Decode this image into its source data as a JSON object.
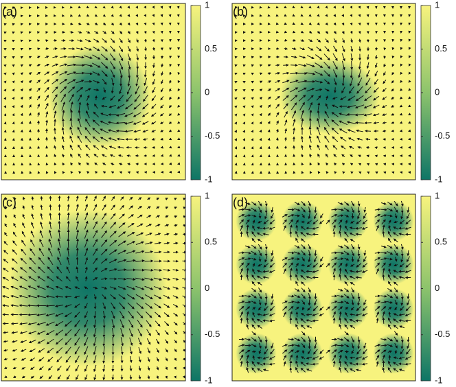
{
  "chart_data": [
    {
      "type": "heatmap",
      "title": "(a)",
      "colors": [
        "#0e7566",
        "#f7f37e"
      ],
      "colorbar": {
        "lim": [
          -1,
          1
        ],
        "ticks": [
          1,
          0.5,
          0,
          -0.5,
          -1
        ]
      }
    },
    {
      "type": "heatmap",
      "title": "(b)",
      "colors": [
        "#0e7566",
        "#f7f37e"
      ],
      "colorbar": {
        "lim": [
          -1,
          1
        ],
        "ticks": [
          1,
          0.5,
          0,
          -0.5,
          -1
        ]
      }
    },
    {
      "type": "heatmap",
      "title": "(c)",
      "colors": [
        "#0e7566",
        "#f7f37e"
      ],
      "colorbar": {
        "lim": [
          -1,
          1
        ],
        "ticks": [
          1,
          0.5,
          0,
          -0.5,
          -1
        ]
      }
    },
    {
      "type": "heatmap",
      "title": "(d)",
      "colors": [
        "#0e7566",
        "#f7f37e"
      ],
      "colorbar": {
        "lim": [
          -1,
          1
        ],
        "ticks": [
          1,
          0.5,
          0,
          -0.5,
          -1
        ]
      }
    }
  ]
}
